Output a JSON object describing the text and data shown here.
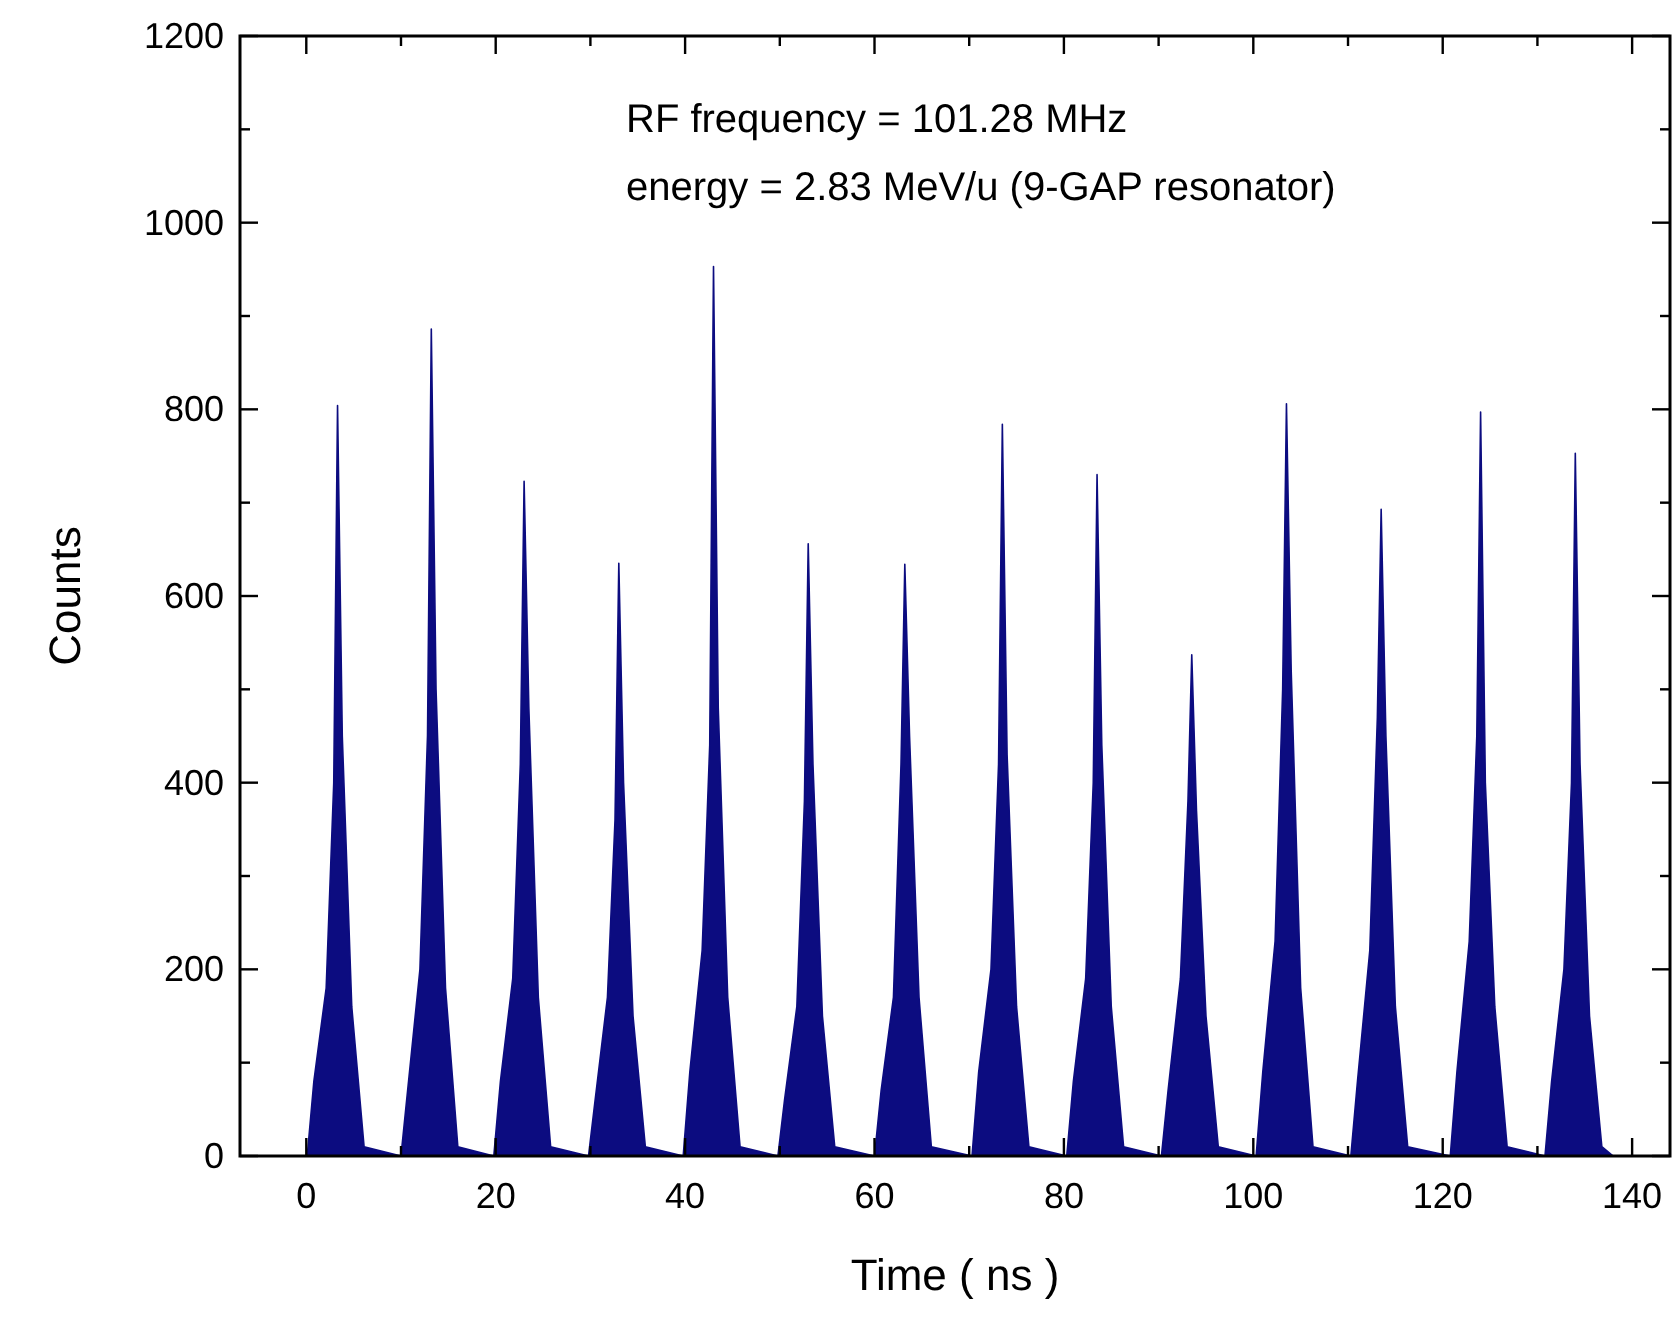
{
  "chart_data": {
    "type": "area",
    "xlabel": "Time ( ns )",
    "ylabel": "Counts",
    "annotations": [
      "RF frequency = 101.28 MHz",
      "energy = 2.83 MeV/u (9-GAP resonator)"
    ],
    "xlim": [
      -7,
      144
    ],
    "ylim": [
      0,
      1200
    ],
    "xticks": [
      0,
      {
        "value": 10,
        "label": null
      },
      20,
      {
        "value": 30,
        "label": null
      },
      40,
      {
        "value": 50,
        "label": null
      },
      60,
      {
        "value": 70,
        "label": null
      },
      80,
      {
        "value": 90,
        "label": null
      },
      100,
      {
        "value": 110,
        "label": null
      },
      120,
      {
        "value": 130,
        "label": null
      },
      140
    ],
    "yticks": [
      0,
      {
        "value": 100,
        "label": null
      },
      200,
      {
        "value": 300,
        "label": null
      },
      400,
      {
        "value": 500,
        "label": null
      },
      600,
      {
        "value": 700,
        "label": null
      },
      800,
      {
        "value": 900,
        "label": null
      },
      1000,
      {
        "value": 1100,
        "label": null
      },
      1200
    ],
    "series": [
      {
        "color": "#0c0c80",
        "x": [
          0.1,
          0.8,
          2.1,
          2.9,
          3.3,
          3.8,
          4.8,
          6.1,
          10.0,
          10.7,
          12.0,
          12.8,
          13.2,
          13.7,
          14.7,
          16.0,
          19.8,
          20.5,
          21.8,
          22.6,
          23.0,
          23.5,
          24.5,
          25.8,
          29.8,
          30.5,
          31.8,
          32.6,
          33.0,
          33.5,
          34.5,
          35.8,
          39.8,
          40.5,
          41.8,
          42.6,
          43.0,
          43.5,
          44.5,
          45.8,
          49.8,
          50.5,
          51.8,
          52.6,
          53.0,
          53.5,
          54.5,
          55.8,
          60.0,
          60.7,
          62.0,
          62.8,
          63.2,
          63.7,
          64.7,
          66.0,
          70.3,
          71.0,
          72.3,
          73.1,
          73.5,
          74.0,
          75.0,
          76.3,
          80.3,
          81.0,
          82.3,
          83.1,
          83.5,
          84.0,
          85.0,
          86.3,
          90.3,
          91.0,
          92.3,
          93.1,
          93.5,
          94.0,
          95.0,
          96.3,
          100.3,
          101.0,
          102.3,
          103.1,
          103.5,
          104.0,
          105.0,
          106.3,
          110.3,
          111.0,
          112.3,
          113.1,
          113.5,
          114.0,
          115.0,
          116.3,
          120.8,
          121.5,
          122.8,
          123.6,
          124.0,
          124.5,
          125.5,
          126.8,
          130.8,
          131.5,
          132.8,
          133.6,
          134.0,
          134.5,
          135.5,
          136.8,
          138.0
        ],
        "values": [
          0,
          80,
          180,
          400,
          804,
          450,
          160,
          10,
          0,
          70,
          200,
          450,
          886,
          500,
          180,
          10,
          0,
          80,
          190,
          420,
          723,
          480,
          170,
          10,
          0,
          60,
          170,
          360,
          635,
          400,
          150,
          10,
          0,
          90,
          220,
          440,
          953,
          480,
          170,
          10,
          0,
          60,
          160,
          380,
          656,
          420,
          150,
          10,
          0,
          70,
          170,
          420,
          634,
          450,
          170,
          10,
          0,
          90,
          200,
          420,
          784,
          430,
          160,
          10,
          0,
          80,
          190,
          400,
          730,
          440,
          160,
          10,
          0,
          70,
          190,
          380,
          537,
          370,
          150,
          10,
          0,
          90,
          230,
          500,
          806,
          520,
          180,
          10,
          0,
          80,
          220,
          470,
          693,
          450,
          160,
          10,
          0,
          90,
          230,
          450,
          797,
          400,
          160,
          10,
          0,
          80,
          200,
          400,
          753,
          420,
          150,
          10,
          0
        ]
      }
    ]
  }
}
